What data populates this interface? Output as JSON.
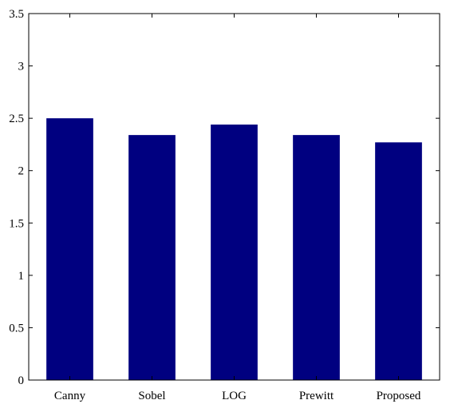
{
  "chart_data": {
    "type": "bar",
    "title": "",
    "xlabel": "",
    "ylabel": "",
    "categories": [
      "Canny",
      "Sobel",
      "LOG",
      "Prewitt",
      "Proposed"
    ],
    "values": [
      2.5,
      2.34,
      2.44,
      2.34,
      2.27
    ],
    "ylim": [
      0,
      3.5
    ],
    "yticks": [
      "0",
      "0.5",
      "1",
      "1.5",
      "2",
      "2.5",
      "3",
      "3.5"
    ],
    "grid": false,
    "bar_color": "#000080",
    "axis_color": "#000000"
  }
}
